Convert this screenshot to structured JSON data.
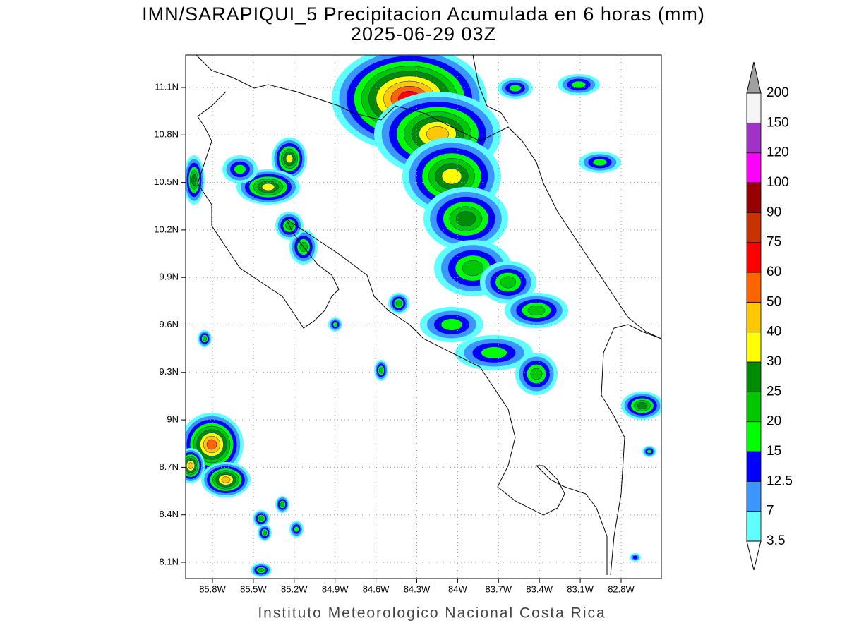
{
  "header": {
    "title": "IMN/SARAPIQUI_5 Precipitacion Acumulada en 6 horas (mm)",
    "subtitle": "2025-06-29 03Z"
  },
  "map": {
    "lat_labels": [
      "11.1N",
      "10.8N",
      "10.5N",
      "10.2N",
      "9.9N",
      "9.6N",
      "9.3N",
      "9N",
      "8.7N",
      "8.4N",
      "8.1N"
    ],
    "lon_labels": [
      "85.8W",
      "85.5W",
      "85.2W",
      "84.9W",
      "84.6W",
      "84.3W",
      "84W",
      "83.7W",
      "83.4W",
      "83.1W",
      "82.8W"
    ]
  },
  "colorbar": {
    "levels": [
      "3.5",
      "7",
      "12.5",
      "15",
      "20",
      "25",
      "30",
      "40",
      "50",
      "60",
      "75",
      "90",
      "100",
      "120",
      "150",
      "200"
    ],
    "colors": [
      "#60ffff",
      "#3c96ff",
      "#0000ff",
      "#00ff00",
      "#00c800",
      "#008c00",
      "#ffff00",
      "#ffc800",
      "#ff6400",
      "#ff0000",
      "#c83200",
      "#960000",
      "#ff00ff",
      "#a032c8",
      "#f5f5f5"
    ],
    "over_color": "#a0a0a0",
    "under_color": "#ffffff"
  },
  "footer": "Instituto Meteorologico Nacional Costa Rica"
}
